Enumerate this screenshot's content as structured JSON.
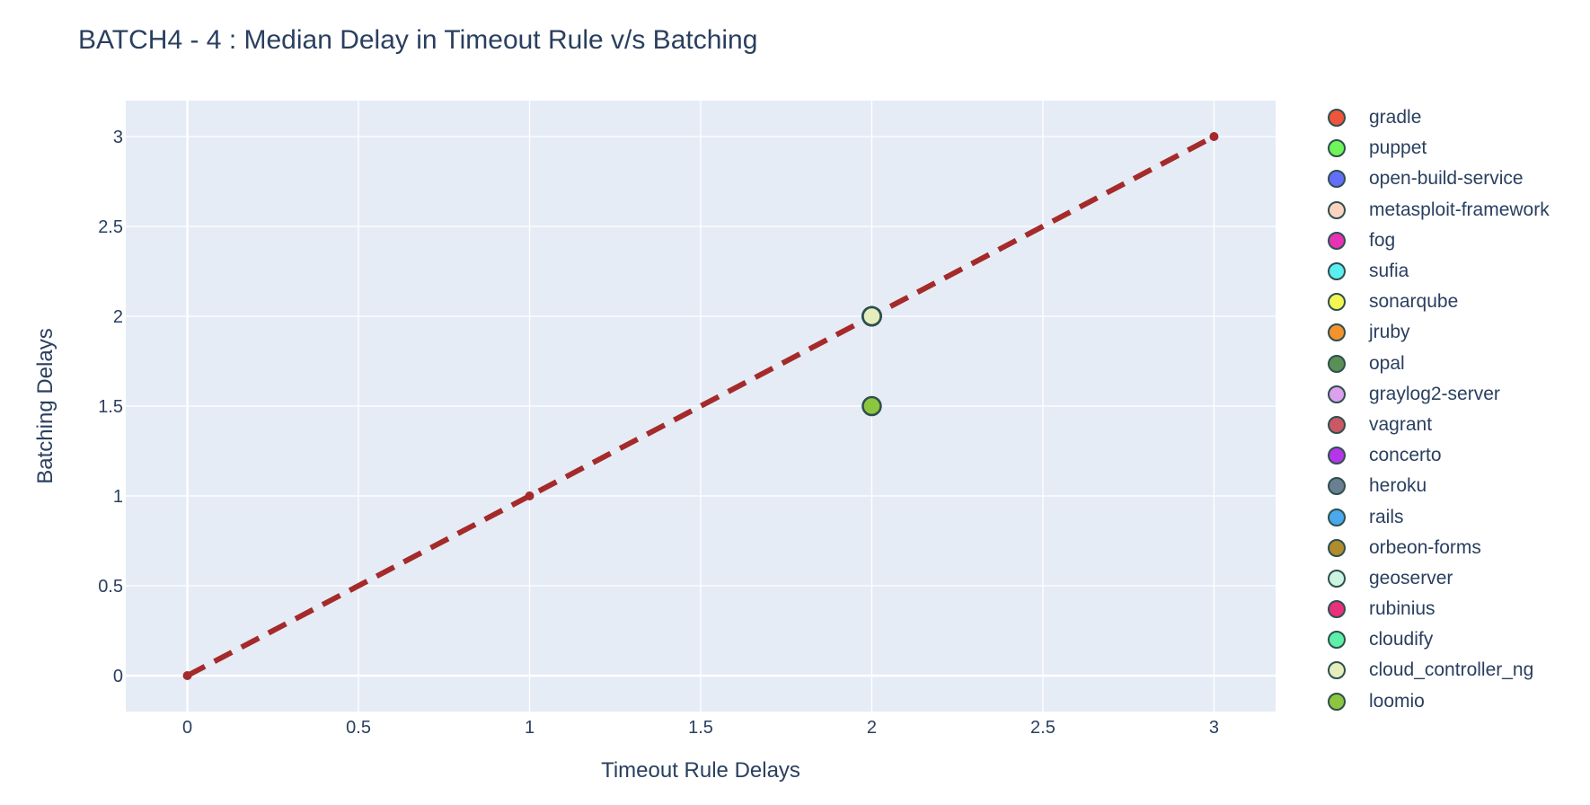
{
  "chart_data": {
    "type": "scatter",
    "title": "BATCH4 - 4 : Median Delay in Timeout Rule v/s Batching",
    "xlabel": "Timeout Rule Delays",
    "ylabel": "Batching Delays",
    "xlim": [
      -0.18,
      3.18
    ],
    "ylim": [
      -0.2,
      3.2
    ],
    "x_ticks": [
      0,
      0.5,
      1,
      1.5,
      2,
      2.5,
      3
    ],
    "x_tick_labels": [
      "0",
      "0.5",
      "1",
      "1.5",
      "2",
      "2.5",
      "3"
    ],
    "y_ticks": [
      0,
      0.5,
      1,
      1.5,
      2,
      2.5,
      3
    ],
    "y_tick_labels": [
      "0",
      "0.5",
      "1",
      "1.5",
      "2",
      "2.5",
      "3"
    ],
    "grid": true,
    "legend_position": "right",
    "plot_background": "#e5ecf6",
    "marker_outline": "#2f4f4f",
    "reference_line": {
      "x": [
        0,
        1,
        2,
        3
      ],
      "y": [
        0,
        1,
        2,
        3
      ],
      "color": "#a52a2a",
      "style": "dash"
    },
    "series": [
      {
        "name": "gradle",
        "color": "#EF553B",
        "x": [
          2
        ],
        "y": [
          2
        ]
      },
      {
        "name": "puppet",
        "color": "#6EF55A",
        "x": [
          2
        ],
        "y": [
          2
        ]
      },
      {
        "name": "open-build-service",
        "color": "#636EFA",
        "x": [
          2
        ],
        "y": [
          2
        ]
      },
      {
        "name": "metasploit-framework",
        "color": "#FCD3BF",
        "x": [
          2
        ],
        "y": [
          2
        ]
      },
      {
        "name": "fog",
        "color": "#E832B4",
        "x": [
          2
        ],
        "y": [
          2
        ]
      },
      {
        "name": "sufia",
        "color": "#5CEFF2",
        "x": [
          2
        ],
        "y": [
          2
        ]
      },
      {
        "name": "sonarqube",
        "color": "#F5F552",
        "x": [
          2
        ],
        "y": [
          2
        ]
      },
      {
        "name": "jruby",
        "color": "#F5922E",
        "x": [
          2
        ],
        "y": [
          2
        ]
      },
      {
        "name": "opal",
        "color": "#5A8F55",
        "x": [
          2
        ],
        "y": [
          2
        ]
      },
      {
        "name": "graylog2-server",
        "color": "#DDA0EE",
        "x": [
          2
        ],
        "y": [
          2
        ]
      },
      {
        "name": "vagrant",
        "color": "#CC5865",
        "x": [
          2
        ],
        "y": [
          2
        ]
      },
      {
        "name": "concerto",
        "color": "#B536E8",
        "x": [
          2
        ],
        "y": [
          2
        ]
      },
      {
        "name": "heroku",
        "color": "#6A7F8F",
        "x": [
          2
        ],
        "y": [
          2
        ]
      },
      {
        "name": "rails",
        "color": "#4AA8ED",
        "x": [
          2
        ],
        "y": [
          2
        ]
      },
      {
        "name": "orbeon-forms",
        "color": "#B08C2F",
        "x": [
          2
        ],
        "y": [
          2
        ]
      },
      {
        "name": "geoserver",
        "color": "#CCF5E1",
        "x": [
          2
        ],
        "y": [
          2
        ]
      },
      {
        "name": "rubinius",
        "color": "#E8307B",
        "x": [
          2
        ],
        "y": [
          2
        ]
      },
      {
        "name": "cloudify",
        "color": "#5DF0A8",
        "x": [
          2
        ],
        "y": [
          2
        ]
      },
      {
        "name": "cloud_controller_ng",
        "color": "#E6EDBD",
        "x": [
          2
        ],
        "y": [
          2
        ]
      },
      {
        "name": "loomio",
        "color": "#8CC63F",
        "x": [
          2
        ],
        "y": [
          1.5
        ]
      }
    ]
  }
}
